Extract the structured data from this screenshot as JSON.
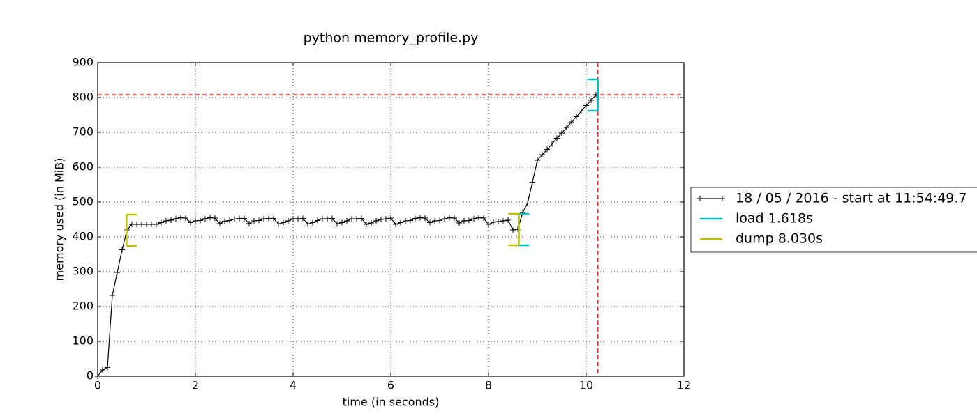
{
  "chart_data": {
    "type": "line",
    "title": "python memory_profile.py",
    "x_label": "time (in seconds)",
    "y_label": "memory used (in MiB)",
    "xlim": [
      0,
      12
    ],
    "ylim": [
      0,
      900
    ],
    "xticks": [
      0,
      2,
      4,
      6,
      8,
      10,
      12
    ],
    "yticks": [
      0,
      100,
      200,
      300,
      400,
      500,
      600,
      700,
      800,
      900
    ],
    "grid": true,
    "legend": "right",
    "x": [
      0,
      0.1,
      0.2,
      0.3,
      0.4,
      0.5,
      0.6,
      0.7,
      0.8,
      0.9,
      1.0,
      1.1,
      1.2,
      1.3,
      1.4,
      1.5,
      1.6,
      1.7,
      1.8,
      1.9,
      2.0,
      2.1,
      2.2,
      2.3,
      2.4,
      2.5,
      2.6,
      2.7,
      2.8,
      2.9,
      3.0,
      3.1,
      3.2,
      3.3,
      3.4,
      3.5,
      3.6,
      3.7,
      3.8,
      3.9,
      4.0,
      4.1,
      4.2,
      4.3,
      4.4,
      4.5,
      4.6,
      4.7,
      4.8,
      4.9,
      5.0,
      5.1,
      5.2,
      5.3,
      5.4,
      5.5,
      5.6,
      5.7,
      5.8,
      5.9,
      6.0,
      6.1,
      6.2,
      6.3,
      6.4,
      6.5,
      6.6,
      6.7,
      6.8,
      6.9,
      7.0,
      7.1,
      7.2,
      7.3,
      7.4,
      7.5,
      7.6,
      7.7,
      7.8,
      7.9,
      8.0,
      8.1,
      8.2,
      8.3,
      8.4,
      8.5,
      8.6,
      8.7,
      8.8,
      8.9,
      9.0,
      9.1,
      9.2,
      9.3,
      9.4,
      9.5,
      9.6,
      9.7,
      9.8,
      9.9,
      10.0,
      10.1,
      10.2
    ],
    "series": [
      {
        "name": "18 / 05 / 2016 - start at 11:54:49.7",
        "color": "#000000",
        "values": [
          0,
          18,
          25,
          232,
          298,
          363,
          420,
          436,
          436,
          436,
          436,
          436,
          436,
          441,
          446,
          448,
          452,
          455,
          454,
          441,
          446,
          447,
          452,
          455,
          454,
          438,
          445,
          447,
          451,
          453,
          453,
          438,
          446,
          447,
          452,
          453,
          453,
          437,
          441,
          446,
          452,
          452,
          453,
          437,
          441,
          447,
          452,
          452,
          453,
          437,
          441,
          446,
          452,
          452,
          453,
          436,
          440,
          446,
          450,
          452,
          454,
          436,
          441,
          446,
          447,
          453,
          455,
          454,
          441,
          446,
          447,
          452,
          455,
          454,
          440,
          446,
          447,
          452,
          455,
          454,
          436,
          442,
          444,
          446,
          448,
          420,
          422,
          470,
          497,
          557,
          620,
          636,
          651,
          667,
          683,
          698,
          714,
          730,
          745,
          761,
          777,
          792,
          808
        ]
      }
    ],
    "functions": [
      {
        "name": "load 1.618s",
        "color": "#00bfbf",
        "start": 8.62,
        "end": 10.24,
        "start_range": [
          376,
          466
        ],
        "end_range": [
          762,
          852
        ]
      },
      {
        "name": "dump 8.030s",
        "color": "#bfbf00",
        "start": 0.59,
        "end": 8.62,
        "start_range": [
          374,
          464
        ],
        "end_range": [
          376,
          466
        ]
      }
    ],
    "max_memory": 808,
    "max_time": 10.24,
    "max_color": "#ff0000"
  }
}
